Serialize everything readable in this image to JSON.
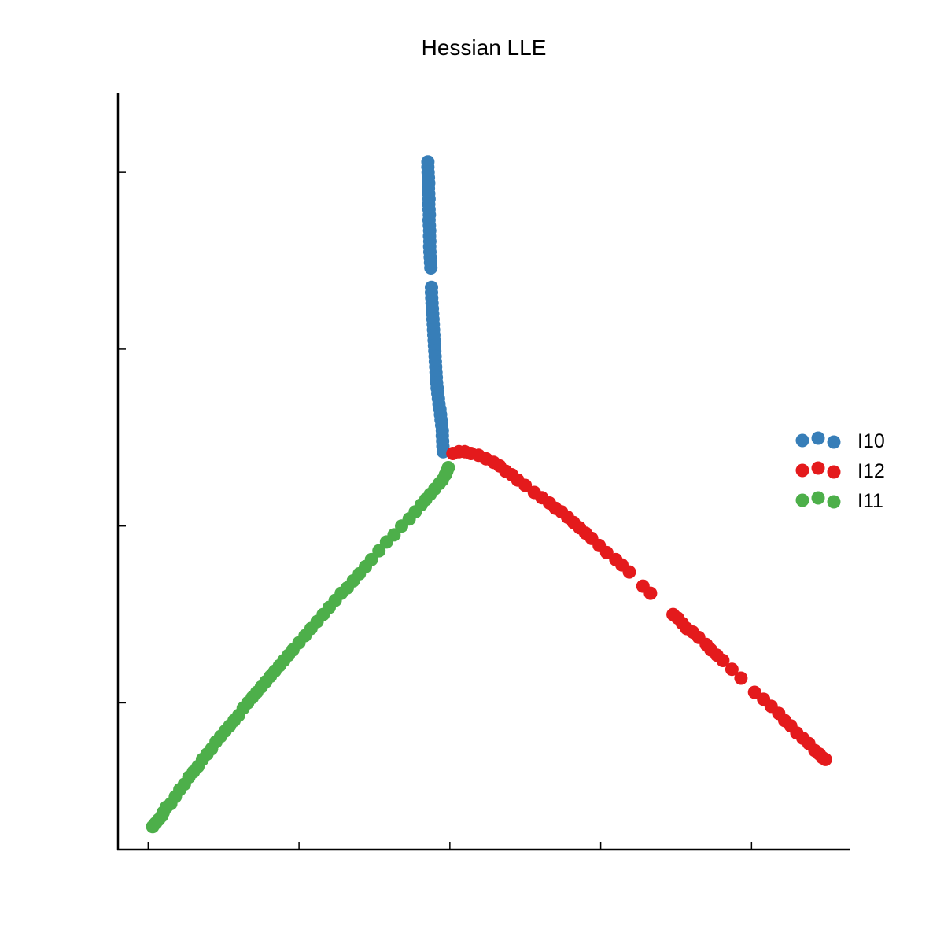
{
  "chart_data": {
    "type": "scatter",
    "title": "Hessian LLE",
    "xlabel": "",
    "ylabel": "",
    "xlim": [
      -0.2,
      4.65
    ],
    "ylim": [
      -0.83,
      3.45
    ],
    "xticks": [
      0,
      1,
      2,
      3,
      4
    ],
    "yticks": [
      0,
      1,
      2,
      3
    ],
    "tick_labels_visible": false,
    "grid": false,
    "legend_position": "right",
    "series": [
      {
        "name": "I10",
        "color": "#377eb8",
        "points": [
          [
            1.854,
            3.06
          ],
          [
            1.854,
            3.03
          ],
          [
            1.856,
            3.0
          ],
          [
            1.858,
            2.97
          ],
          [
            1.86,
            2.94
          ],
          [
            1.858,
            2.91
          ],
          [
            1.86,
            2.88
          ],
          [
            1.862,
            2.85
          ],
          [
            1.86,
            2.82
          ],
          [
            1.862,
            2.79
          ],
          [
            1.864,
            2.76
          ],
          [
            1.862,
            2.73
          ],
          [
            1.864,
            2.7
          ],
          [
            1.866,
            2.67
          ],
          [
            1.865,
            2.64
          ],
          [
            1.867,
            2.61
          ],
          [
            1.866,
            2.58
          ],
          [
            1.868,
            2.55
          ],
          [
            1.87,
            2.52
          ],
          [
            1.872,
            2.49
          ],
          [
            1.874,
            2.46
          ],
          [
            1.878,
            2.35
          ],
          [
            1.878,
            2.32
          ],
          [
            1.88,
            2.29
          ],
          [
            1.882,
            2.26
          ],
          [
            1.884,
            2.23
          ],
          [
            1.886,
            2.2
          ],
          [
            1.888,
            2.17
          ],
          [
            1.89,
            2.14
          ],
          [
            1.892,
            2.11
          ],
          [
            1.894,
            2.08
          ],
          [
            1.896,
            2.05
          ],
          [
            1.898,
            2.02
          ],
          [
            1.9,
            1.99
          ],
          [
            1.902,
            1.96
          ],
          [
            1.904,
            1.93
          ],
          [
            1.906,
            1.9
          ],
          [
            1.908,
            1.87
          ],
          [
            1.91,
            1.84
          ],
          [
            1.912,
            1.81
          ],
          [
            1.916,
            1.78
          ],
          [
            1.92,
            1.75
          ],
          [
            1.924,
            1.72
          ],
          [
            1.928,
            1.69
          ],
          [
            1.934,
            1.66
          ],
          [
            1.938,
            1.63
          ],
          [
            1.942,
            1.6
          ],
          [
            1.946,
            1.57
          ],
          [
            1.95,
            1.54
          ],
          [
            1.95,
            1.51
          ],
          [
            1.952,
            1.48
          ],
          [
            1.954,
            1.45
          ],
          [
            1.956,
            1.42
          ]
        ]
      },
      {
        "name": "I12",
        "color": "#e41a1c",
        "points": [
          [
            2.02,
            1.41
          ],
          [
            2.06,
            1.42
          ],
          [
            2.1,
            1.42
          ],
          [
            2.14,
            1.41
          ],
          [
            2.19,
            1.4
          ],
          [
            2.24,
            1.38
          ],
          [
            2.29,
            1.36
          ],
          [
            2.33,
            1.34
          ],
          [
            2.37,
            1.31
          ],
          [
            2.41,
            1.29
          ],
          [
            2.45,
            1.26
          ],
          [
            2.5,
            1.23
          ],
          [
            2.56,
            1.19
          ],
          [
            2.61,
            1.16
          ],
          [
            2.66,
            1.13
          ],
          [
            2.7,
            1.1
          ],
          [
            2.74,
            1.08
          ],
          [
            2.78,
            1.05
          ],
          [
            2.82,
            1.02
          ],
          [
            2.86,
            0.99
          ],
          [
            2.9,
            0.96
          ],
          [
            2.94,
            0.93
          ],
          [
            2.99,
            0.89
          ],
          [
            3.04,
            0.85
          ],
          [
            3.1,
            0.81
          ],
          [
            3.14,
            0.78
          ],
          [
            3.19,
            0.74
          ],
          [
            3.28,
            0.66
          ],
          [
            3.33,
            0.62
          ],
          [
            3.48,
            0.5
          ],
          [
            3.51,
            0.48
          ],
          [
            3.54,
            0.45
          ],
          [
            3.57,
            0.42
          ],
          [
            3.61,
            0.4
          ],
          [
            3.65,
            0.37
          ],
          [
            3.7,
            0.33
          ],
          [
            3.73,
            0.3
          ],
          [
            3.77,
            0.27
          ],
          [
            3.81,
            0.24
          ],
          [
            3.87,
            0.19
          ],
          [
            3.93,
            0.14
          ],
          [
            4.02,
            0.06
          ],
          [
            4.08,
            0.02
          ],
          [
            4.13,
            -0.02
          ],
          [
            4.18,
            -0.06
          ],
          [
            4.22,
            -0.1
          ],
          [
            4.26,
            -0.13
          ],
          [
            4.3,
            -0.17
          ],
          [
            4.34,
            -0.2
          ],
          [
            4.38,
            -0.23
          ],
          [
            4.42,
            -0.27
          ],
          [
            4.45,
            -0.29
          ],
          [
            4.47,
            -0.31
          ],
          [
            4.49,
            -0.32
          ]
        ]
      },
      {
        "name": "I11",
        "color": "#4daf4a",
        "points": [
          [
            0.03,
            -0.7
          ],
          [
            0.05,
            -0.68
          ],
          [
            0.07,
            -0.66
          ],
          [
            0.09,
            -0.64
          ],
          [
            0.1,
            -0.62
          ],
          [
            0.12,
            -0.59
          ],
          [
            0.15,
            -0.57
          ],
          [
            0.18,
            -0.53
          ],
          [
            0.21,
            -0.49
          ],
          [
            0.24,
            -0.46
          ],
          [
            0.27,
            -0.42
          ],
          [
            0.3,
            -0.39
          ],
          [
            0.33,
            -0.36
          ],
          [
            0.36,
            -0.32
          ],
          [
            0.39,
            -0.29
          ],
          [
            0.42,
            -0.26
          ],
          [
            0.45,
            -0.22
          ],
          [
            0.48,
            -0.19
          ],
          [
            0.51,
            -0.16
          ],
          [
            0.54,
            -0.13
          ],
          [
            0.57,
            -0.1
          ],
          [
            0.6,
            -0.07
          ],
          [
            0.63,
            -0.03
          ],
          [
            0.66,
            0.0
          ],
          [
            0.69,
            0.03
          ],
          [
            0.72,
            0.06
          ],
          [
            0.75,
            0.09
          ],
          [
            0.78,
            0.12
          ],
          [
            0.81,
            0.15
          ],
          [
            0.84,
            0.18
          ],
          [
            0.87,
            0.21
          ],
          [
            0.9,
            0.24
          ],
          [
            0.93,
            0.27
          ],
          [
            0.96,
            0.3
          ],
          [
            1.0,
            0.34
          ],
          [
            1.04,
            0.38
          ],
          [
            1.08,
            0.42
          ],
          [
            1.12,
            0.46
          ],
          [
            1.16,
            0.5
          ],
          [
            1.2,
            0.54
          ],
          [
            1.24,
            0.58
          ],
          [
            1.28,
            0.62
          ],
          [
            1.32,
            0.65
          ],
          [
            1.36,
            0.69
          ],
          [
            1.4,
            0.73
          ],
          [
            1.44,
            0.77
          ],
          [
            1.48,
            0.81
          ],
          [
            1.53,
            0.86
          ],
          [
            1.58,
            0.91
          ],
          [
            1.63,
            0.95
          ],
          [
            1.68,
            1.0
          ],
          [
            1.73,
            1.04
          ],
          [
            1.77,
            1.08
          ],
          [
            1.81,
            1.12
          ],
          [
            1.84,
            1.15
          ],
          [
            1.87,
            1.18
          ],
          [
            1.9,
            1.21
          ],
          [
            1.93,
            1.24
          ],
          [
            1.95,
            1.26
          ],
          [
            1.97,
            1.29
          ],
          [
            1.98,
            1.31
          ],
          [
            1.99,
            1.33
          ]
        ]
      }
    ]
  }
}
